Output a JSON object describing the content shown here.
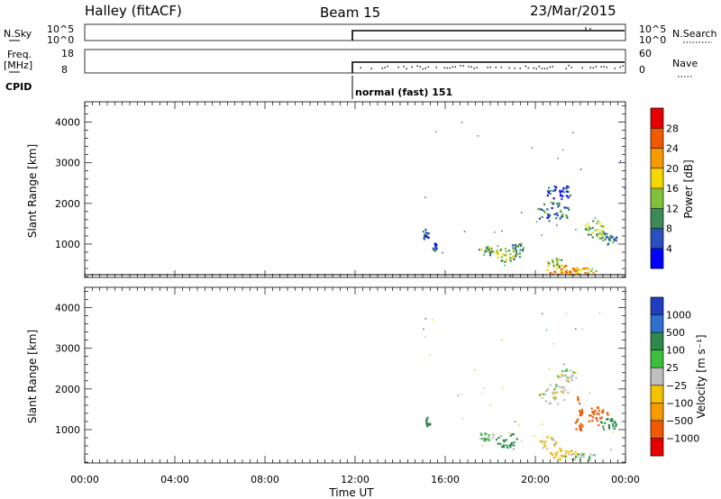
{
  "header": {
    "station": "Halley (fitACF)",
    "beam": "Beam 15",
    "date": "23/Mar/2015"
  },
  "noise_panel": {
    "left_label": "N.Sky",
    "right_label": "N.Search",
    "ticks_left": [
      "10^5",
      "10^0"
    ],
    "ticks_right": [
      "10^5",
      "10^0"
    ]
  },
  "freq_panel": {
    "left_label_line1": "Freq.",
    "left_label_line2": "[MHz]",
    "right_label": "Nave",
    "ticks_left": [
      "18",
      "8"
    ],
    "ticks_right": [
      "60",
      "0"
    ]
  },
  "cpid": {
    "label": "CPID",
    "program": "normal (fast) 151"
  },
  "colors": {
    "power_scale": [
      "#0000ff",
      "#2a4fbf",
      "#3c8a5a",
      "#7fc23a",
      "#f5d800",
      "#f59a00",
      "#f05a00",
      "#e60000"
    ],
    "velocity_scale": [
      "#1f3fbf",
      "#2f6fd0",
      "#2e8a4a",
      "#3cbf3c",
      "#bfbfbf",
      "#f5c200",
      "#f59a00",
      "#f05a00",
      "#e60000"
    ]
  },
  "chart_data": [
    {
      "type": "heatmap",
      "panel": "power",
      "ylabel": "Slant Range [km]",
      "ylim": [
        180,
        4500
      ],
      "yticks": [
        "1000",
        "2000",
        "3000",
        "4000"
      ],
      "colorbar": {
        "label": "Power [dB]",
        "ticks": [
          "4",
          "8",
          "12",
          "16",
          "20",
          "24",
          "28"
        ],
        "range": [
          0,
          32
        ]
      },
      "blobs": [
        {
          "t": 15.1,
          "r": 1250,
          "dt": 0.15,
          "dr": 150,
          "v": 6
        },
        {
          "t": 15.5,
          "r": 950,
          "dt": 0.1,
          "dr": 100,
          "v": 5
        },
        {
          "t": 17.8,
          "r": 850,
          "dt": 0.35,
          "dr": 110,
          "v": 12
        },
        {
          "t": 18.7,
          "r": 780,
          "dt": 0.5,
          "dr": 200,
          "v": 14
        },
        {
          "t": 19.2,
          "r": 880,
          "dt": 0.35,
          "dr": 180,
          "v": 10
        },
        {
          "t": 20.7,
          "r": 1800,
          "dt": 0.8,
          "dr": 250,
          "v": 8
        },
        {
          "t": 21.1,
          "r": 2300,
          "dt": 0.7,
          "dr": 180,
          "v": 6
        },
        {
          "t": 22.6,
          "r": 1400,
          "dt": 0.45,
          "dr": 220,
          "v": 14
        },
        {
          "t": 23.2,
          "r": 1150,
          "dt": 0.4,
          "dr": 150,
          "v": 10
        },
        {
          "t": 21.2,
          "r": 380,
          "dt": 0.7,
          "dr": 120,
          "v": 24
        },
        {
          "t": 22.0,
          "r": 350,
          "dt": 0.9,
          "dr": 90,
          "v": 20
        },
        {
          "t": 20.8,
          "r": 560,
          "dt": 0.4,
          "dr": 120,
          "v": 16
        }
      ]
    },
    {
      "type": "heatmap",
      "panel": "velocity",
      "ylabel": "Slant Range [km]",
      "xlabel": "Time UT",
      "ylim": [
        180,
        4500
      ],
      "xlim": [
        0,
        24
      ],
      "yticks": [
        "1000",
        "2000",
        "3000",
        "4000"
      ],
      "xticks": [
        "00:00",
        "04:00",
        "08:00",
        "12:00",
        "16:00",
        "20:00",
        "00:00"
      ],
      "colorbar": {
        "label": "Velocity [m s⁻¹]",
        "ticks": [
          "1000",
          "500",
          "100",
          "25",
          "−25",
          "−100",
          "−500",
          "−1000"
        ]
      },
      "blobs": [
        {
          "t": 15.2,
          "r": 1200,
          "dt": 0.1,
          "dr": 120,
          "v": 100
        },
        {
          "t": 17.8,
          "r": 850,
          "dt": 0.35,
          "dr": 110,
          "v": 25
        },
        {
          "t": 18.7,
          "r": 780,
          "dt": 0.5,
          "dr": 200,
          "v": 100
        },
        {
          "t": 20.8,
          "r": 1900,
          "dt": 0.7,
          "dr": 250,
          "v": 0
        },
        {
          "t": 21.4,
          "r": 2350,
          "dt": 0.5,
          "dr": 150,
          "v": 0
        },
        {
          "t": 21.9,
          "r": 1500,
          "dt": 0.2,
          "dr": 600,
          "v": -500
        },
        {
          "t": 22.7,
          "r": 1350,
          "dt": 0.5,
          "dr": 220,
          "v": -500
        },
        {
          "t": 23.2,
          "r": 1150,
          "dt": 0.4,
          "dr": 150,
          "v": 100
        },
        {
          "t": 21.2,
          "r": 420,
          "dt": 0.6,
          "dr": 150,
          "v": -100
        },
        {
          "t": 22.0,
          "r": 350,
          "dt": 0.9,
          "dr": 90,
          "v": 25
        },
        {
          "t": 20.5,
          "r": 700,
          "dt": 0.4,
          "dr": 150,
          "v": -25
        }
      ]
    }
  ]
}
